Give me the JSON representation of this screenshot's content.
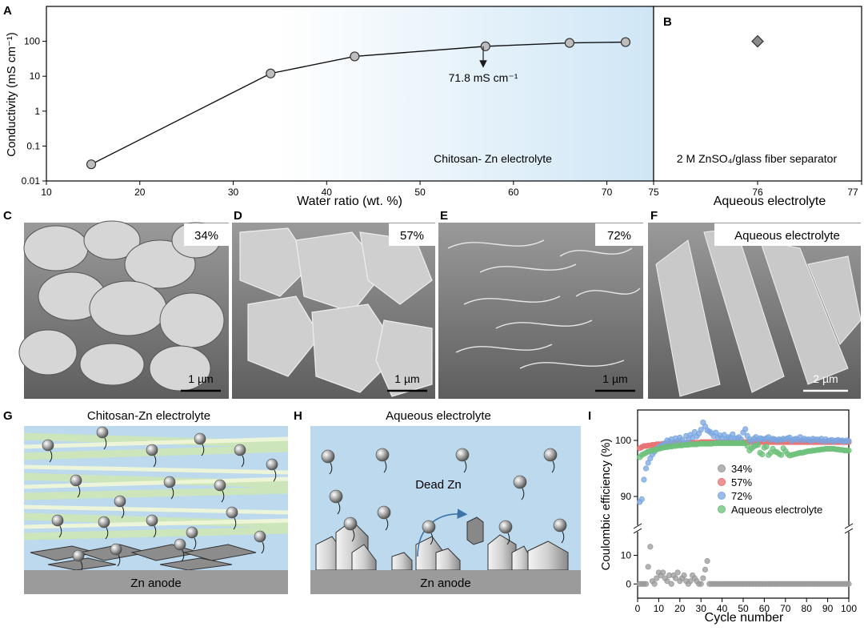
{
  "panels": {
    "A": "A",
    "B": "B",
    "C": "C",
    "D": "D",
    "E": "E",
    "F": "F",
    "G": "G",
    "H": "H",
    "I": "I"
  },
  "chart_a": {
    "type": "line",
    "x": [
      14.8,
      34,
      43,
      57,
      66,
      72
    ],
    "y": [
      0.03,
      12,
      37,
      71.8,
      90,
      95
    ],
    "xlim": [
      10,
      75
    ],
    "ylim": [
      0.01,
      1000
    ],
    "log_y": true,
    "xticks": [
      "10",
      "20",
      "30",
      "40",
      "50",
      "60",
      "70",
      "75"
    ],
    "yticks": [
      "0.01",
      "0.1",
      "1",
      "10",
      "100"
    ],
    "xlabel": "Water ratio (wt. %)",
    "ylabel": "Conductivity (mS cm⁻¹)",
    "annotation": "71.8 mS cm⁻¹",
    "region_label": "Chitosan- Zn electrolyte"
  },
  "chart_b": {
    "type": "scatter",
    "x": [
      76
    ],
    "y": [
      100
    ],
    "xticks": [
      "76",
      "77"
    ],
    "xlabel": "Aqueous electrolyte",
    "region_label": "2 M ZnSO₄/glass fiber separator"
  },
  "sem": [
    {
      "label": "34%",
      "scale": "1 µm"
    },
    {
      "label": "57%",
      "scale": "1 µm"
    },
    {
      "label": "72%",
      "scale": "1 µm"
    },
    {
      "label": "Aqueous electrolyte",
      "scale": "2 µm"
    }
  ],
  "schematic_g": {
    "title": "Chitosan-Zn electrolyte",
    "anode": "Zn anode"
  },
  "schematic_h": {
    "title": "Aqueous electrolyte",
    "anode": "Zn anode",
    "dead_zn": "Dead Zn"
  },
  "chart_data": {
    "type": "scatter",
    "xlabel": "Cycle number",
    "ylabel": "Coulombic efficiency (%)",
    "xlim": [
      0,
      100
    ],
    "xticks": [
      "0",
      "10",
      "20",
      "30",
      "40",
      "50",
      "60",
      "70",
      "80",
      "90",
      "100"
    ],
    "yticks_upper": [
      "90",
      "100"
    ],
    "yticks_lower": [
      "0",
      "10"
    ],
    "axis_break": true,
    "legend_position": "center",
    "series": [
      {
        "name": "34%",
        "color": "#9a9a9a",
        "values": [
          0,
          0,
          0,
          0,
          6,
          13,
          1,
          0,
          2,
          4,
          3,
          4,
          2,
          1,
          3,
          0,
          3,
          2,
          4,
          1,
          2,
          3,
          1,
          0,
          1,
          3,
          2,
          1,
          0,
          0,
          2,
          5,
          8,
          0,
          0,
          0,
          0,
          0,
          0,
          0,
          0,
          0,
          0,
          0,
          0,
          0,
          0,
          0,
          0,
          0,
          0,
          0,
          0,
          0,
          0,
          0,
          0,
          0,
          0,
          0,
          0,
          0,
          0,
          0,
          0,
          0,
          0,
          0,
          0,
          0,
          0,
          0,
          0,
          0,
          0,
          0,
          0,
          0,
          0,
          0,
          0,
          0,
          0,
          0,
          0,
          0,
          0,
          0,
          0,
          0,
          0,
          0,
          0,
          0,
          0,
          0,
          0,
          0,
          0,
          0
        ]
      },
      {
        "name": "57%",
        "color": "#e87070",
        "values": [
          98.6,
          98.8,
          99,
          99,
          99.1,
          99.1,
          99.2,
          99.2,
          99.3,
          99.3,
          99.3,
          99.4,
          99.4,
          99.4,
          99.4,
          99.5,
          99.5,
          99.5,
          99.5,
          99.5,
          99.5,
          99.6,
          99.6,
          99.6,
          99.6,
          99.6,
          99.6,
          99.6,
          99.6,
          99.7,
          99.7,
          99.7,
          99.7,
          99.7,
          99.7,
          99.7,
          99.7,
          99.7,
          99.7,
          99.7,
          99.7,
          99.7,
          99.7,
          99.7,
          99.7,
          99.7,
          99.7,
          99.7,
          99.7,
          99.7,
          99.7,
          99.7,
          99.7,
          99.7,
          99.7,
          99.7,
          99.7,
          99.7,
          99.7,
          99.7,
          99.7,
          99.7,
          99.7,
          99.7,
          99.7,
          99.7,
          99.7,
          99.7,
          99.7,
          99.7,
          99.7,
          99.7,
          99.7,
          99.7,
          99.7,
          99.7,
          99.7,
          99.7,
          99.7,
          99.7,
          99.7,
          99.7,
          99.7,
          99.7,
          99.7,
          99.7,
          99.7,
          99.7,
          99.7,
          99.7,
          99.7,
          99.7,
          99.7,
          99.7,
          99.7,
          99.7,
          99.7,
          99.7,
          99.7,
          99.7
        ]
      },
      {
        "name": "72%",
        "color": "#7aa6e0",
        "values": [
          89,
          89.5,
          93,
          95,
          96,
          96.8,
          97.5,
          98,
          98.4,
          98.8,
          99,
          99.2,
          99.5,
          100,
          99.8,
          100.2,
          99.7,
          100.4,
          99.9,
          100.5,
          100.1,
          99.6,
          100.8,
          100.2,
          101,
          100.5,
          101.5,
          100.7,
          101.2,
          101.9,
          103.2,
          102.5,
          101.8,
          101.6,
          101.3,
          100.8,
          101.4,
          100.5,
          100.9,
          100.4,
          101,
          100.2,
          100.6,
          100.5,
          101.1,
          100.3,
          100.4,
          100.6,
          100.2,
          101.4,
          102,
          100.8,
          100.2,
          99.9,
          100.3,
          100.6,
          100.1,
          100.4,
          100.3,
          100.2,
          100.4,
          100.6,
          100.1,
          100.3,
          100.2,
          100,
          100.2,
          100.1,
          100.3,
          100.2,
          100.4,
          100.5,
          99.9,
          100.2,
          100.3,
          100.1,
          100.6,
          100,
          100.3,
          100.1,
          100.2,
          99.9,
          100.3,
          100.1,
          100.2,
          100,
          100.3,
          99.8,
          100.2,
          99.9,
          100,
          100.1,
          99.8,
          100,
          100.1,
          99.9,
          100,
          99.8,
          100,
          99.9
        ]
      },
      {
        "name": "Aqueous electrolyte",
        "color": "#6cc07a",
        "values": [
          97,
          97.4,
          97.6,
          97.8,
          98,
          98.1,
          98.2,
          98.3,
          98.4,
          98.5,
          98.6,
          98.7,
          98.8,
          98.8,
          98.9,
          98.9,
          99,
          99,
          99.1,
          99.1,
          99.1,
          99.2,
          99.2,
          99.2,
          99.3,
          99.3,
          99.3,
          99.3,
          99.4,
          99.4,
          99.4,
          99.4,
          99.4,
          99.4,
          99.4,
          99.5,
          99.5,
          99.5,
          99.5,
          99.5,
          99.5,
          99.5,
          99.5,
          99.5,
          99.5,
          99.5,
          99.5,
          99.5,
          99.5,
          99.5,
          99.5,
          99,
          98.2,
          98.6,
          98.9,
          99.1,
          99.2,
          97.8,
          97.5,
          98.7,
          98.9,
          97.4,
          97.8,
          98.5,
          98,
          97.9,
          97.6,
          97.4,
          98.6,
          98.1,
          97.6,
          97.3,
          97.4,
          97.5,
          97.6,
          97.7,
          97.8,
          97.8,
          97.9,
          98,
          98.1,
          98.1,
          98.2,
          98.2,
          98.3,
          98.3,
          98.4,
          98.4,
          98.5,
          98.5,
          98.5,
          98.5,
          98.5,
          98.4,
          98.4,
          98.3,
          98.3,
          98.2,
          98.2,
          98.2
        ]
      }
    ]
  }
}
